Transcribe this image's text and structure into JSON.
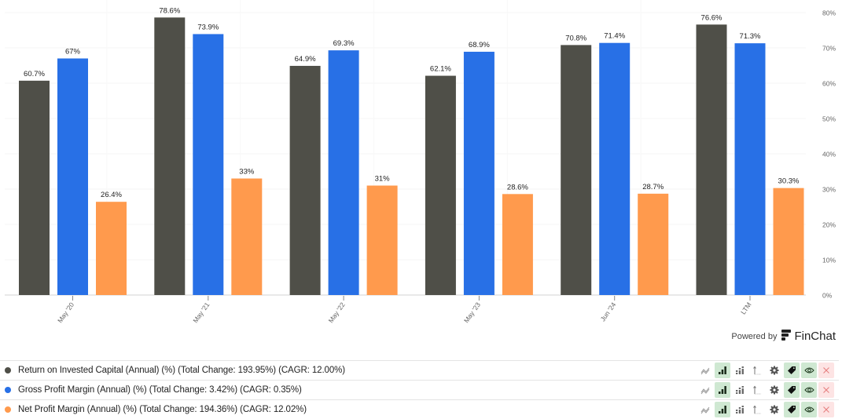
{
  "chart_data": {
    "type": "bar",
    "title": "",
    "xlabel": "",
    "ylabel": "",
    "categories": [
      "May '20",
      "May '21",
      "May '22",
      "May '23",
      "Jun '24",
      "LTM"
    ],
    "series": [
      {
        "name": "Return on Invested Capital (Annual) (%)",
        "color": "#4f4f48",
        "values": [
          60.7,
          78.6,
          64.9,
          62.1,
          70.8,
          76.6
        ],
        "labels": [
          "60.7%",
          "78.6%",
          "64.9%",
          "62.1%",
          "70.8%",
          "76.6%"
        ]
      },
      {
        "name": "Gross Profit Margin (Annual) (%)",
        "color": "#2870e6",
        "values": [
          67,
          73.9,
          69.3,
          68.9,
          71.4,
          71.3
        ],
        "labels": [
          "67%",
          "73.9%",
          "69.3%",
          "68.9%",
          "71.4%",
          "71.3%"
        ]
      },
      {
        "name": "Net Profit Margin (Annual) (%)",
        "color": "#ff9a4d",
        "values": [
          26.4,
          33,
          31,
          28.6,
          28.7,
          30.3
        ],
        "labels": [
          "26.4%",
          "33%",
          "31%",
          "28.6%",
          "28.7%",
          "30.3%"
        ]
      }
    ],
    "ylim": [
      0,
      80
    ],
    "yticks": [
      0,
      10,
      20,
      30,
      40,
      50,
      60,
      70,
      80
    ],
    "ytick_labels": [
      "0%",
      "10%",
      "20%",
      "30%",
      "40%",
      "50%",
      "60%",
      "70%",
      "80%"
    ],
    "y_axis_side": "right",
    "grid": true,
    "legend_placement": "bottom"
  },
  "branding": {
    "powered_by": "Powered by",
    "brand": "FinChat"
  },
  "legend": [
    {
      "label": "Return on Invested Capital (Annual) (%) (Total Change: 193.95%) (CAGR: 12.00%)",
      "color": "#4f4f48"
    },
    {
      "label": "Gross Profit Margin (Annual) (%) (Total Change: 3.42%) (CAGR: 0.35%)",
      "color": "#2870e6"
    },
    {
      "label": "Net Profit Margin (Annual) (%) (Total Change: 194.36%) (CAGR: 12.02%)",
      "color": "#ff9a4d"
    }
  ],
  "legend_tools": [
    "line-chart-icon",
    "bar-chart-icon",
    "stacked-bar-icon",
    "axis-icon",
    "gear-icon",
    "tag-icon",
    "eye-icon",
    "close-icon"
  ]
}
